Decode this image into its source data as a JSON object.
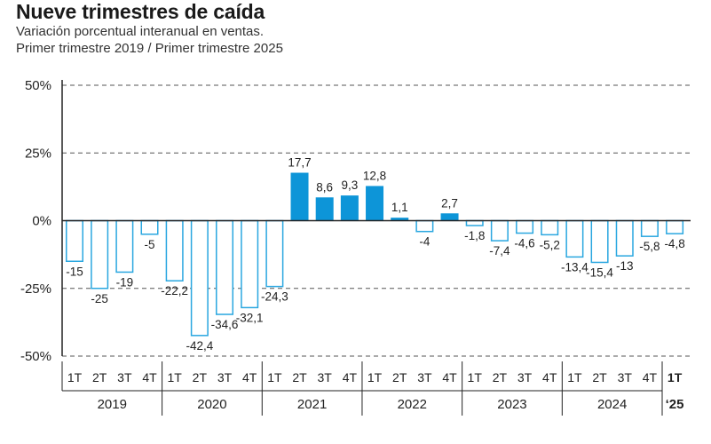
{
  "header": {
    "title": "Nueve trimestres de caída",
    "subtitle_line1": "Variación porcentual interanual en ventas.",
    "subtitle_line2": "Primer trimestre 2019 / Primer trimestre 2025"
  },
  "colors": {
    "positive_fill": "#0d95d8",
    "negative_stroke": "#2aa7e0",
    "axis": "#222222",
    "grid": "#555555"
  },
  "chart_data": {
    "type": "bar",
    "title": "Nueve trimestres de caída",
    "xlabel": "",
    "ylabel": "",
    "ylim": [
      -50,
      50
    ],
    "y_ticks": [
      50,
      25,
      0,
      -25,
      -50
    ],
    "y_tick_labels": [
      "50%",
      "25%",
      "0%",
      "-25%",
      "-50%"
    ],
    "grid": "dashed horizontal",
    "categories": [
      "1T",
      "2T",
      "3T",
      "4T",
      "1T",
      "2T",
      "3T",
      "4T",
      "1T",
      "2T",
      "3T",
      "4T",
      "1T",
      "2T",
      "3T",
      "4T",
      "1T",
      "2T",
      "3T",
      "4T",
      "1T",
      "2T",
      "3T",
      "4T",
      "1T"
    ],
    "values": [
      -15,
      -25,
      -19,
      -5,
      -22.2,
      -42.4,
      -34.6,
      -32.1,
      -24.3,
      17.7,
      8.6,
      9.3,
      12.8,
      1.1,
      -4,
      2.7,
      -1.8,
      -7.4,
      -4.6,
      -5.2,
      -13.4,
      -15.4,
      -13,
      -5.8,
      -4.8
    ],
    "value_labels": [
      "-15",
      "-25",
      "-19",
      "-5",
      "-22,2",
      "-42,4",
      "-34,6",
      "-32,1",
      "-24,3",
      "17,7",
      "8,6",
      "9,3",
      "12,8",
      "1,1",
      "-4",
      "2,7",
      "-1,8",
      "-7,4",
      "-4,6",
      "-5,2",
      "-13,4",
      "-15,4",
      "-13",
      "-5,8",
      "-4,8"
    ],
    "years": [
      {
        "label": "2019",
        "quarters": 4
      },
      {
        "label": "2020",
        "quarters": 4
      },
      {
        "label": "2021",
        "quarters": 4
      },
      {
        "label": "2022",
        "quarters": 4
      },
      {
        "label": "2023",
        "quarters": 4
      },
      {
        "label": "2024",
        "quarters": 4
      },
      {
        "label": "‘25",
        "quarters": 1,
        "bold": true
      }
    ]
  }
}
